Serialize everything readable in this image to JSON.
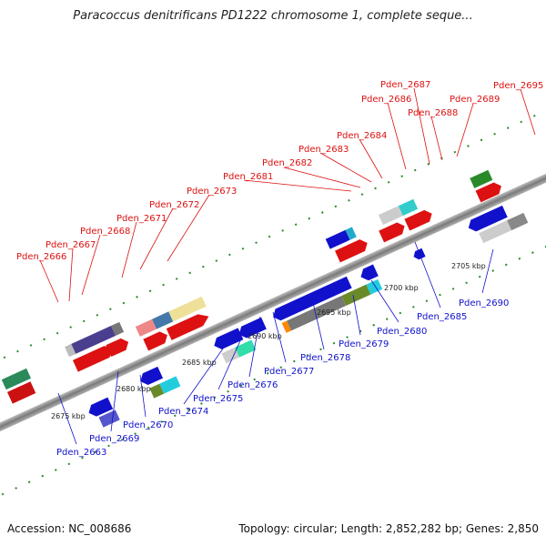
{
  "title": "Paracoccus denitrificans PD1222 chromosome 1, complete seque...",
  "footer": {
    "accession": "Accession: NC_008686",
    "summary": "Topology: circular; Length: 2,852,282 bp; Genes: 2,850"
  },
  "colors": {
    "forward_label": "#dd1111",
    "reverse_label": "#1111cc",
    "backbone": "#888888",
    "track_dots": "#2a8a2a"
  },
  "forward_genes": [
    "Pden_2666",
    "Pden_2667",
    "Pden_2668",
    "Pden_2671",
    "Pden_2672",
    "Pden_2673",
    "Pden_2681",
    "Pden_2682",
    "Pden_2683",
    "Pden_2684",
    "Pden_2686",
    "Pden_2687",
    "Pden_2688",
    "Pden_2689",
    "Pden_2695"
  ],
  "reverse_genes": [
    "Pden_2663",
    "Pden_2669",
    "Pden_2670",
    "Pden_2674",
    "Pden_2675",
    "Pden_2676",
    "Pden_2677",
    "Pden_2678",
    "Pden_2679",
    "Pden_2680",
    "Pden_2685",
    "Pden_2690"
  ],
  "scale_labels": [
    "2675 kbp",
    "2680 kbp",
    "2685 kbp",
    "2690 kbp",
    "2695 kbp",
    "2700 kbp",
    "2705 kbp"
  ]
}
